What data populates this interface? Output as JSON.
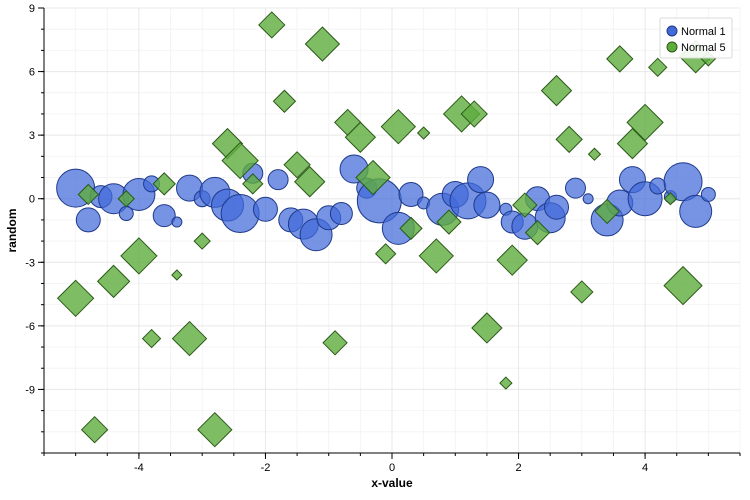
{
  "chart_data": {
    "type": "scatter",
    "title": "",
    "xlabel": "x-value",
    "ylabel": "random",
    "xlim": [
      -5.5,
      5.5
    ],
    "ylim": [
      -12,
      9
    ],
    "grid": true,
    "legend_position": "top-right",
    "x_ticks": [
      -4,
      -2,
      0,
      2,
      4
    ],
    "x_tick_labels": [
      "-4",
      "-2",
      "0",
      "2",
      "4"
    ],
    "y_ticks": [
      9,
      6,
      3,
      0,
      -3,
      -6,
      -9
    ],
    "y_tick_labels": [
      "9",
      "6",
      "3",
      "0",
      "-3",
      "-6",
      "-9"
    ],
    "series": [
      {
        "name": "Normal 1",
        "marker": "circle",
        "color": "#4169d9",
        "stroke": "#1f3a8a",
        "points": [
          {
            "x": -5.0,
            "y": 0.5,
            "size": 19
          },
          {
            "x": -4.8,
            "y": -1.0,
            "size": 12
          },
          {
            "x": -4.6,
            "y": 0.1,
            "size": 11
          },
          {
            "x": -4.4,
            "y": 0.0,
            "size": 15
          },
          {
            "x": -4.2,
            "y": -0.7,
            "size": 7
          },
          {
            "x": -4.0,
            "y": 0.2,
            "size": 16
          },
          {
            "x": -3.8,
            "y": 0.7,
            "size": 8
          },
          {
            "x": -3.6,
            "y": -0.8,
            "size": 11
          },
          {
            "x": -3.4,
            "y": -1.1,
            "size": 5
          },
          {
            "x": -3.2,
            "y": 0.5,
            "size": 13
          },
          {
            "x": -3.0,
            "y": 0.0,
            "size": 8
          },
          {
            "x": -2.8,
            "y": 0.3,
            "size": 15
          },
          {
            "x": -2.6,
            "y": -0.3,
            "size": 16
          },
          {
            "x": -2.4,
            "y": -0.7,
            "size": 19
          },
          {
            "x": -2.2,
            "y": 1.2,
            "size": 10
          },
          {
            "x": -2.0,
            "y": -0.5,
            "size": 12
          },
          {
            "x": -1.8,
            "y": 0.9,
            "size": 10
          },
          {
            "x": -1.6,
            "y": -1.0,
            "size": 12
          },
          {
            "x": -1.4,
            "y": -1.2,
            "size": 15
          },
          {
            "x": -1.2,
            "y": -1.7,
            "size": 16
          },
          {
            "x": -1.0,
            "y": -0.9,
            "size": 12
          },
          {
            "x": -0.8,
            "y": -0.7,
            "size": 11
          },
          {
            "x": -0.6,
            "y": 1.4,
            "size": 14
          },
          {
            "x": -0.4,
            "y": 0.5,
            "size": 10
          },
          {
            "x": -0.2,
            "y": -0.1,
            "size": 22
          },
          {
            "x": 0.1,
            "y": -1.4,
            "size": 16
          },
          {
            "x": 0.3,
            "y": 0.2,
            "size": 12
          },
          {
            "x": 0.5,
            "y": -0.2,
            "size": 6
          },
          {
            "x": 0.8,
            "y": -0.5,
            "size": 16
          },
          {
            "x": 1.0,
            "y": 0.2,
            "size": 13
          },
          {
            "x": 1.2,
            "y": -0.1,
            "size": 18
          },
          {
            "x": 1.4,
            "y": 0.9,
            "size": 13
          },
          {
            "x": 1.5,
            "y": -0.3,
            "size": 13
          },
          {
            "x": 1.8,
            "y": -0.5,
            "size": 6
          },
          {
            "x": 1.9,
            "y": -1.1,
            "size": 11
          },
          {
            "x": 2.1,
            "y": -1.3,
            "size": 13
          },
          {
            "x": 2.3,
            "y": 0.0,
            "size": 12
          },
          {
            "x": 2.5,
            "y": -0.9,
            "size": 15
          },
          {
            "x": 2.6,
            "y": -0.4,
            "size": 12
          },
          {
            "x": 2.9,
            "y": 0.5,
            "size": 10
          },
          {
            "x": 3.1,
            "y": 0.0,
            "size": 5
          },
          {
            "x": 3.4,
            "y": -1.0,
            "size": 16
          },
          {
            "x": 3.6,
            "y": -0.2,
            "size": 13
          },
          {
            "x": 3.8,
            "y": 0.9,
            "size": 13
          },
          {
            "x": 4.0,
            "y": 0.0,
            "size": 17
          },
          {
            "x": 4.2,
            "y": 0.6,
            "size": 8
          },
          {
            "x": 4.4,
            "y": 0.1,
            "size": 6
          },
          {
            "x": 4.6,
            "y": 0.8,
            "size": 19
          },
          {
            "x": 4.8,
            "y": -0.6,
            "size": 16
          },
          {
            "x": 5.0,
            "y": 0.2,
            "size": 7
          }
        ]
      },
      {
        "name": "Normal 5",
        "marker": "diamond",
        "color": "#5fac3e",
        "stroke": "#2a5a17",
        "points": [
          {
            "x": -5.0,
            "y": -4.7,
            "size": 18
          },
          {
            "x": -4.8,
            "y": 0.2,
            "size": 10
          },
          {
            "x": -4.7,
            "y": -10.9,
            "size": 13
          },
          {
            "x": -4.4,
            "y": -3.9,
            "size": 16
          },
          {
            "x": -4.2,
            "y": 0.0,
            "size": 8
          },
          {
            "x": -4.0,
            "y": -2.7,
            "size": 18
          },
          {
            "x": -3.8,
            "y": -6.6,
            "size": 9
          },
          {
            "x": -3.6,
            "y": 0.7,
            "size": 11
          },
          {
            "x": -3.4,
            "y": -3.6,
            "size": 5
          },
          {
            "x": -3.2,
            "y": -6.6,
            "size": 17
          },
          {
            "x": -3.0,
            "y": -2.0,
            "size": 8
          },
          {
            "x": -2.8,
            "y": -10.9,
            "size": 17
          },
          {
            "x": -2.6,
            "y": 2.6,
            "size": 15
          },
          {
            "x": -2.4,
            "y": 1.8,
            "size": 18
          },
          {
            "x": -2.2,
            "y": 0.7,
            "size": 10
          },
          {
            "x": -1.9,
            "y": 8.2,
            "size": 13
          },
          {
            "x": -1.7,
            "y": 4.6,
            "size": 11
          },
          {
            "x": -1.5,
            "y": 1.6,
            "size": 13
          },
          {
            "x": -1.3,
            "y": 0.8,
            "size": 15
          },
          {
            "x": -1.1,
            "y": 7.3,
            "size": 17
          },
          {
            "x": -0.9,
            "y": -6.8,
            "size": 12
          },
          {
            "x": -0.7,
            "y": 3.6,
            "size": 13
          },
          {
            "x": -0.5,
            "y": 2.9,
            "size": 15
          },
          {
            "x": -0.3,
            "y": 1.0,
            "size": 17
          },
          {
            "x": -0.1,
            "y": -2.6,
            "size": 10
          },
          {
            "x": 0.1,
            "y": 3.4,
            "size": 17
          },
          {
            "x": 0.3,
            "y": -1.4,
            "size": 11
          },
          {
            "x": 0.5,
            "y": 3.1,
            "size": 6
          },
          {
            "x": 0.7,
            "y": -2.7,
            "size": 17
          },
          {
            "x": 0.9,
            "y": -1.1,
            "size": 12
          },
          {
            "x": 1.1,
            "y": 4.0,
            "size": 18
          },
          {
            "x": 1.3,
            "y": 4.0,
            "size": 13
          },
          {
            "x": 1.5,
            "y": -6.1,
            "size": 15
          },
          {
            "x": 1.8,
            "y": -8.7,
            "size": 6
          },
          {
            "x": 1.9,
            "y": -2.9,
            "size": 15
          },
          {
            "x": 2.1,
            "y": -0.3,
            "size": 12
          },
          {
            "x": 2.3,
            "y": -1.6,
            "size": 12
          },
          {
            "x": 2.6,
            "y": 5.1,
            "size": 15
          },
          {
            "x": 2.8,
            "y": 2.8,
            "size": 13
          },
          {
            "x": 3.0,
            "y": -4.4,
            "size": 11
          },
          {
            "x": 3.2,
            "y": 2.1,
            "size": 6
          },
          {
            "x": 3.4,
            "y": -0.6,
            "size": 12
          },
          {
            "x": 3.6,
            "y": 6.6,
            "size": 13
          },
          {
            "x": 3.8,
            "y": 2.6,
            "size": 15
          },
          {
            "x": 4.0,
            "y": 3.6,
            "size": 18
          },
          {
            "x": 4.2,
            "y": 6.2,
            "size": 9
          },
          {
            "x": 4.4,
            "y": 0.0,
            "size": 6
          },
          {
            "x": 4.6,
            "y": -4.1,
            "size": 19
          },
          {
            "x": 4.8,
            "y": 6.7,
            "size": 16
          },
          {
            "x": 5.0,
            "y": 6.6,
            "size": 7
          }
        ]
      }
    ]
  }
}
